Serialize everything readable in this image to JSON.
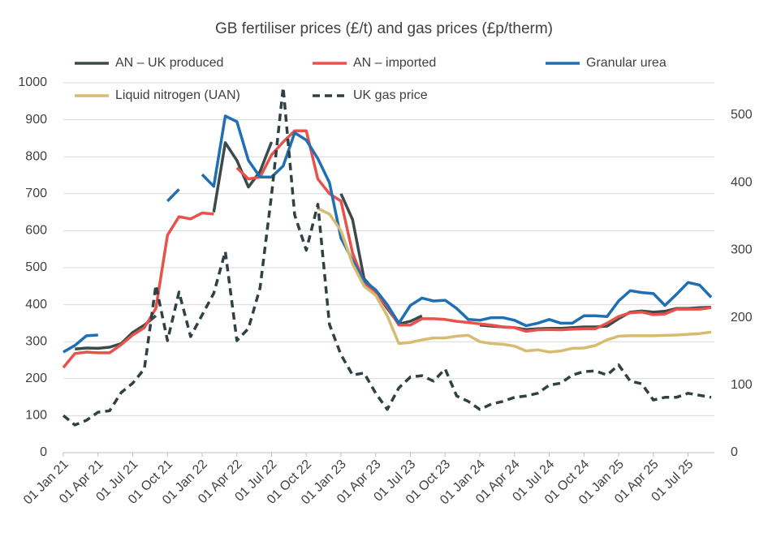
{
  "chart_data": {
    "type": "line",
    "title": "GB fertiliser prices (£/t) and gas prices (£p/therm)",
    "categories": [
      "01 Jan 21",
      null,
      null,
      "01 Apr 21",
      null,
      null,
      "01 Jul 21",
      null,
      null,
      "01 Oct 21",
      null,
      null,
      "01 Jan 22",
      null,
      null,
      "01 Apr 22",
      null,
      null,
      "01 Jul 22",
      null,
      null,
      "01 Oct 22",
      null,
      null,
      "01 Jan 23",
      null,
      null,
      "01 Apr 23",
      null,
      null,
      "01 Jul 23",
      null,
      null,
      "01 Oct 23",
      null,
      null,
      "01 Jan 24",
      null,
      null,
      "01 Apr 24",
      null,
      null,
      "01 Jul 24",
      null,
      null,
      "01 Oct 24",
      null,
      null,
      "01 Jan 25",
      null,
      null,
      "01 Apr 25",
      null,
      null,
      "01 Jul 25",
      null,
      null
    ],
    "series": [
      {
        "name": "AN – UK produced",
        "color": "#3b4a4a",
        "values": [
          null,
          280,
          283,
          282,
          285,
          295,
          325,
          345,
          370,
          null,
          null,
          null,
          null,
          650,
          838,
          790,
          718,
          760,
          840,
          null,
          null,
          null,
          null,
          null,
          700,
          630,
          470,
          435,
          390,
          348,
          355,
          370,
          null,
          null,
          null,
          null,
          345,
          342,
          340,
          338,
          333,
          335,
          336,
          336,
          338,
          340,
          340,
          342,
          362,
          380,
          383,
          380,
          382,
          390,
          390,
          392,
          393
        ]
      },
      {
        "name": "AN – imported",
        "color": "#e8524a",
        "values": [
          230,
          268,
          272,
          270,
          270,
          292,
          318,
          338,
          390,
          588,
          638,
          632,
          648,
          645,
          null,
          770,
          740,
          745,
          805,
          840,
          870,
          870,
          740,
          700,
          680,
          540,
          460,
          430,
          395,
          345,
          345,
          362,
          362,
          360,
          355,
          352,
          348,
          345,
          340,
          338,
          328,
          332,
          333,
          332,
          334,
          335,
          335,
          350,
          368,
          378,
          380,
          373,
          375,
          388,
          388,
          388,
          392
        ]
      },
      {
        "name": "Granular urea",
        "color": "#1f6fb5",
        "values": [
          272,
          290,
          316,
          318,
          null,
          null,
          null,
          null,
          null,
          680,
          712,
          null,
          752,
          720,
          910,
          895,
          790,
          745,
          745,
          775,
          865,
          845,
          795,
          730,
          580,
          520,
          465,
          440,
          400,
          350,
          398,
          418,
          410,
          412,
          390,
          360,
          358,
          365,
          365,
          358,
          343,
          350,
          360,
          350,
          350,
          370,
          370,
          368,
          410,
          438,
          433,
          430,
          398,
          428,
          460,
          453,
          420
        ]
      },
      {
        "name": "Liquid nitrogen (UAN)",
        "color": "#d6bb70",
        "values": [
          null,
          null,
          null,
          null,
          null,
          null,
          null,
          null,
          null,
          null,
          null,
          null,
          null,
          null,
          null,
          null,
          null,
          null,
          null,
          null,
          null,
          null,
          660,
          645,
          600,
          510,
          450,
          425,
          370,
          295,
          298,
          305,
          310,
          310,
          315,
          317,
          300,
          295,
          293,
          288,
          275,
          278,
          272,
          275,
          282,
          283,
          290,
          305,
          315,
          316,
          316,
          316,
          317,
          318,
          320,
          322,
          326
        ]
      },
      {
        "name": "UK gas price",
        "color": "#2f4144",
        "axis": "y2",
        "dashed": true,
        "values": [
          55,
          41,
          48,
          60,
          62,
          89,
          103,
          124,
          248,
          166,
          238,
          172,
          204,
          236,
          298,
          166,
          184,
          244,
          382,
          541,
          352,
          300,
          368,
          190,
          145,
          115,
          118,
          88,
          64,
          96,
          112,
          114,
          106,
          124,
          84,
          76,
          64,
          72,
          76,
          82,
          84,
          88,
          100,
          103,
          115,
          120,
          121,
          115,
          130,
          106,
          102,
          78,
          82,
          82,
          88,
          85,
          82
        ]
      }
    ],
    "ylim": [
      0,
      1000
    ],
    "yticks": [
      0,
      100,
      200,
      300,
      400,
      500,
      600,
      700,
      800,
      900,
      1000
    ],
    "y2lim": [
      0,
      548
    ],
    "y2ticks": [
      0,
      100,
      200,
      300,
      400,
      500
    ],
    "grid": true,
    "legend": "top"
  }
}
